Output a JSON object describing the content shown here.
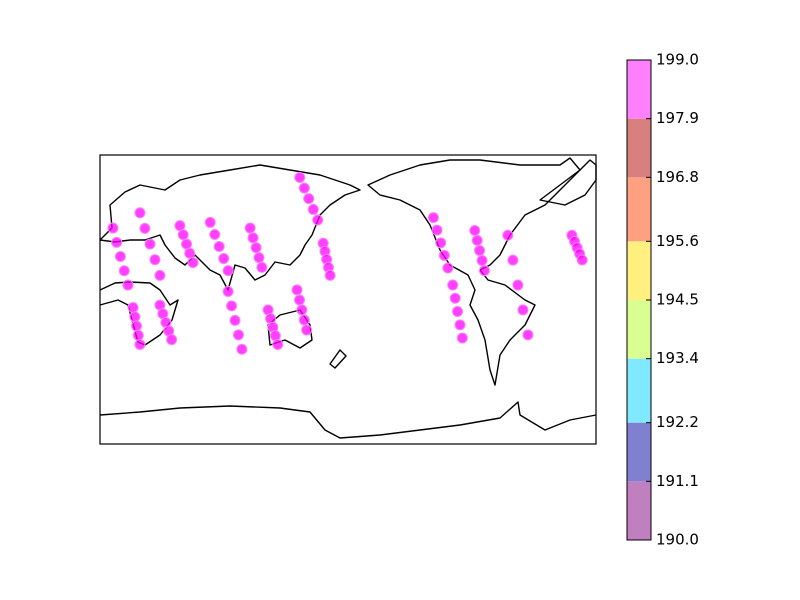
{
  "chart_data": {
    "type": "scatter",
    "xlim": [
      -20,
      340
    ],
    "ylim": [
      -90,
      90
    ],
    "x": [
      -10.6,
      -7.9,
      -5.2,
      -2.4,
      0.3,
      9,
      12.6,
      16.3,
      19.9,
      23.5,
      38,
      40.4,
      42.8,
      45.1,
      47.5,
      60,
      63.3,
      66.5,
      69.8,
      73,
      89,
      91.1,
      93.3,
      95.4,
      97.5,
      73,
      75.5,
      78,
      80.5,
      83,
      102,
      103.8,
      105.5,
      107.3,
      109,
      123,
      124.8,
      126.5,
      128.3,
      130,
      125,
      128.3,
      131.5,
      134.8,
      138,
      142,
      143.3,
      144.5,
      145.8,
      147,
      222,
      224.6,
      227.3,
      229.9,
      232.5,
      236,
      237.8,
      239.5,
      241.3,
      243,
      252,
      253.8,
      255.5,
      257.3,
      259,
      276,
      279.7,
      283.3,
      287,
      290.6,
      4,
      5.3,
      6.5,
      7.8,
      9,
      23.5,
      25.6,
      27.8,
      29.9,
      32,
      322.5,
      324.4,
      326.3,
      328.1,
      330
    ],
    "y": [
      44.5,
      35.6,
      26.8,
      17.9,
      9,
      54,
      44.3,
      34.5,
      24.8,
      15,
      46,
      40.3,
      34.5,
      28.8,
      23,
      48,
      40.5,
      33,
      25.5,
      18,
      44.5,
      38.4,
      32.3,
      26.1,
      20,
      5,
      -4,
      -13,
      -22,
      -31,
      -6.5,
      -11.9,
      -17.3,
      -22.6,
      -28,
      6,
      -0.3,
      -6.5,
      -12.8,
      -19,
      76,
      69.4,
      62.8,
      56.1,
      49.5,
      35,
      30,
      25,
      20,
      15,
      51,
      43.2,
      35.3,
      27.5,
      19.6,
      9,
      0.8,
      -7.5,
      -15.8,
      -24,
      43,
      36.8,
      30.5,
      24.3,
      18,
      40,
      24.5,
      9,
      -6.5,
      -22,
      -5,
      -10.8,
      -16.5,
      -22.3,
      -28,
      -3.5,
      -8.9,
      -14.3,
      -19.6,
      -25,
      40,
      36.2,
      32.3,
      28.5,
      24.6
    ],
    "values": [
      198.5,
      198.5,
      198.5,
      198.5,
      198.5,
      198.5,
      198.5,
      198.5,
      198.5,
      198.5,
      198.5,
      198.5,
      198.5,
      198.5,
      198.5,
      198.5,
      198.5,
      198.5,
      198.5,
      198.5,
      198.5,
      198.5,
      198.5,
      198.5,
      198.5,
      198.5,
      198.5,
      198.5,
      198.5,
      198.5,
      198.5,
      198.5,
      198.5,
      198.5,
      198.5,
      198.5,
      198.5,
      198.5,
      198.5,
      198.5,
      198.5,
      198.5,
      198.5,
      198.5,
      198.5,
      198.5,
      198.5,
      198.5,
      198.5,
      198.5,
      198.5,
      198.5,
      198.5,
      198.5,
      198.5,
      198.5,
      198.5,
      198.5,
      198.5,
      198.5,
      198.5,
      198.5,
      198.5,
      198.5,
      198.5,
      198.5,
      198.5,
      198.5,
      198.5,
      198.5,
      198.5,
      198.5,
      198.5,
      198.5,
      198.5,
      198.5,
      198.5,
      198.5,
      198.5,
      198.5,
      198.5,
      198.5,
      198.5,
      198.5,
      198.5
    ],
    "color": "#ff00ff",
    "colorbar": {
      "ticks": [
        {
          "value": 190,
          "label": "190.0"
        },
        191.1,
        192.2,
        193.4,
        194.5,
        195.6,
        196.8,
        197.9,
        {
          "value": 199,
          "label": "199.0"
        }
      ],
      "colors": [
        "#c080c0",
        "#8080d0",
        "#80e8ff",
        "#d8ff90",
        "#fff080",
        "#ffa080",
        "#d88080",
        "#ff80ff"
      ]
    }
  }
}
